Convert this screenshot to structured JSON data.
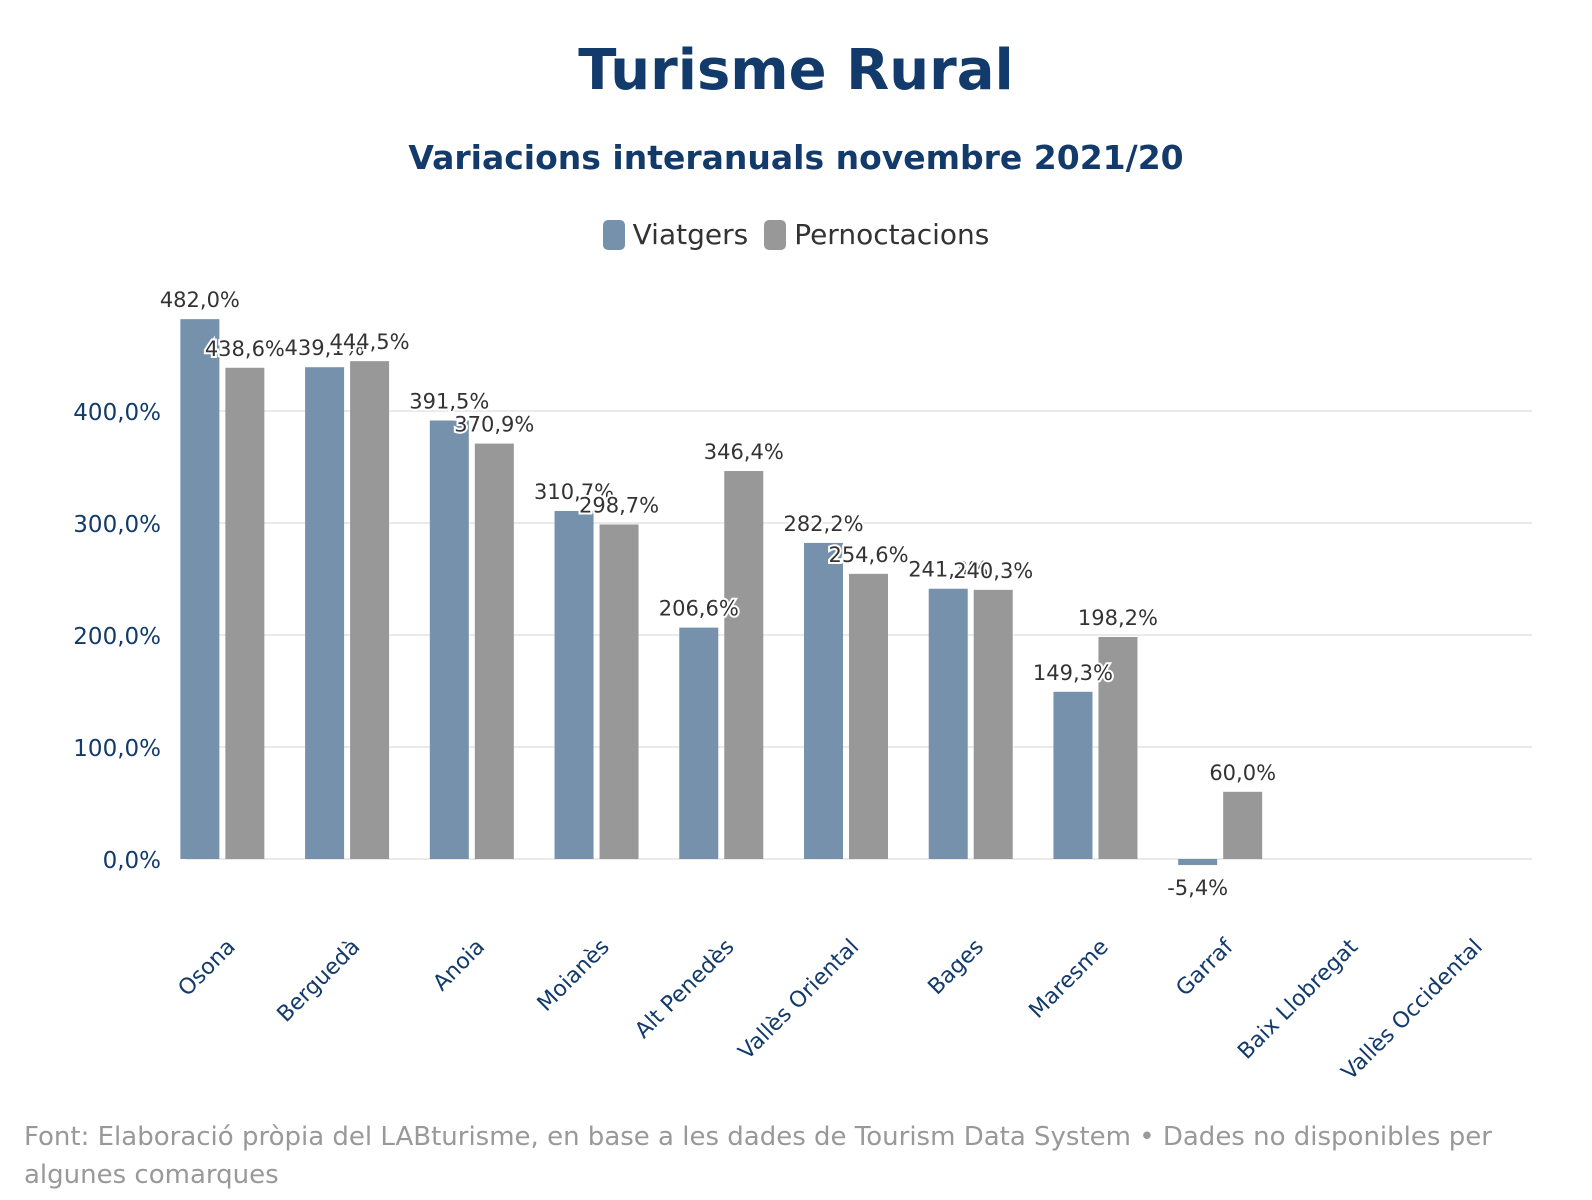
{
  "chart_data": {
    "type": "bar",
    "title": "Turisme Rural",
    "subtitle": "Variacions interanuals novembre 2021/20",
    "categories": [
      "Osona",
      "Berguedà",
      "Anoia",
      "Moianès",
      "Alt Penedès",
      "Vallès Oriental",
      "Bages",
      "Maresme",
      "Garraf",
      "Baix Llobregat",
      "Vallès Occidental"
    ],
    "series": [
      {
        "name": "Viatgers",
        "color": "#7591ac",
        "values": [
          482.0,
          439.1,
          391.5,
          310.7,
          206.6,
          282.2,
          241.3,
          149.3,
          -5.4,
          null,
          null
        ],
        "labels": [
          "482,0%",
          "439,1%",
          "391,5%",
          "310,7%",
          "206,6%",
          "282,2%",
          "241,3%",
          "149,3%",
          "-5,4%",
          "",
          ""
        ]
      },
      {
        "name": "Pernoctacions",
        "color": "#989898",
        "values": [
          438.6,
          444.5,
          370.9,
          298.7,
          346.4,
          254.6,
          240.3,
          198.2,
          60.0,
          null,
          null
        ],
        "labels": [
          "438,6%",
          "444,5%",
          "370,9%",
          "298,7%",
          "346,4%",
          "254,6%",
          "240,3%",
          "198,2%",
          "60,0%",
          "",
          ""
        ]
      }
    ],
    "yticks": [
      0,
      100,
      200,
      300,
      400
    ],
    "ytick_labels": [
      "0,0%",
      "100,0%",
      "200,0%",
      "300,0%",
      "400,0%"
    ],
    "ylim": [
      -10,
      500
    ],
    "grid": true,
    "legend_position": "top-center",
    "xlabel": "",
    "ylabel": ""
  },
  "footer": "Font: Elaboració pròpia del LABturisme, en base a les dades de Tourism Data System • Dades no disponibles per algunes comarques"
}
